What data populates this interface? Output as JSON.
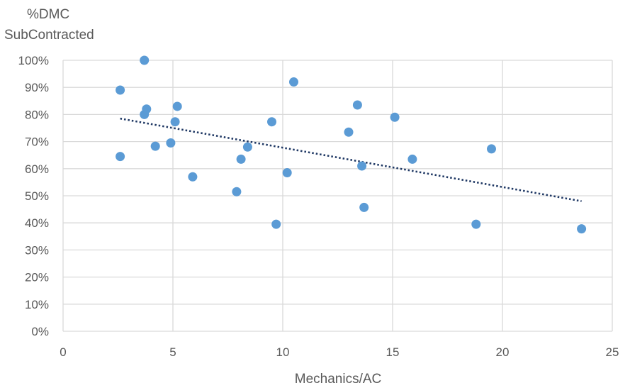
{
  "chart_data": {
    "type": "scatter",
    "title": "",
    "ylabel_lines": [
      "%DMC",
      "SubContracted"
    ],
    "xlabel": "Mechanics/AC",
    "xlim": [
      0,
      25
    ],
    "ylim": [
      0,
      1
    ],
    "x_ticks": [
      0,
      5,
      10,
      15,
      20,
      25
    ],
    "x_tick_labels": [
      "0",
      "5",
      "10",
      "15",
      "20",
      "25"
    ],
    "y_ticks": [
      0,
      0.1,
      0.2,
      0.3,
      0.4,
      0.5,
      0.6,
      0.7,
      0.8,
      0.9,
      1.0
    ],
    "y_tick_labels": [
      "0%",
      "10%",
      "20%",
      "30%",
      "40%",
      "50%",
      "60%",
      "70%",
      "80%",
      "90%",
      "100%"
    ],
    "grid": true,
    "legend": "none",
    "colors": {
      "point": "#5b9bd5",
      "trendline": "#1f3864",
      "grid": "#d9d9d9",
      "text": "#595959"
    },
    "series": [
      {
        "points": [
          [
            2.6,
            0.89
          ],
          [
            2.6,
            0.645
          ],
          [
            3.7,
            1.0
          ],
          [
            3.7,
            0.8
          ],
          [
            3.8,
            0.82
          ],
          [
            4.2,
            0.683
          ],
          [
            4.9,
            0.695
          ],
          [
            5.1,
            0.773
          ],
          [
            5.2,
            0.83
          ],
          [
            5.9,
            0.57
          ],
          [
            7.9,
            0.515
          ],
          [
            8.1,
            0.635
          ],
          [
            8.4,
            0.68
          ],
          [
            9.5,
            0.773
          ],
          [
            9.7,
            0.395
          ],
          [
            10.2,
            0.585
          ],
          [
            10.5,
            0.92
          ],
          [
            13.0,
            0.735
          ],
          [
            13.4,
            0.835
          ],
          [
            13.6,
            0.61
          ],
          [
            13.7,
            0.457
          ],
          [
            15.1,
            0.79
          ],
          [
            15.9,
            0.635
          ],
          [
            18.8,
            0.395
          ],
          [
            19.5,
            0.673
          ],
          [
            23.6,
            0.378
          ]
        ]
      }
    ],
    "trendline": {
      "type": "linear",
      "x": [
        2.6,
        23.6
      ],
      "y": [
        0.785,
        0.48
      ]
    }
  }
}
